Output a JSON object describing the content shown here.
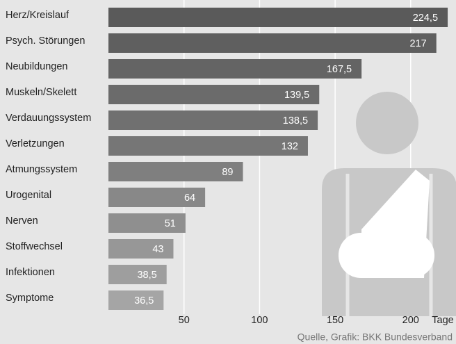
{
  "chart_data": {
    "type": "hbar",
    "categories": [
      "Herz/Kreislauf",
      "Psych. Störungen",
      "Neubildungen",
      "Muskeln/Skelett",
      "Verdauungssystem",
      "Verletzungen",
      "Atmungssystem",
      "Urogenital",
      "Nerven",
      "Stoffwechsel",
      "Infektionen",
      "Symptome"
    ],
    "values": [
      224.5,
      217,
      167.5,
      139.5,
      138.5,
      132,
      89,
      64,
      51,
      43,
      38.5,
      36.5
    ],
    "value_labels": [
      "224,5",
      "217",
      "167,5",
      "139,5",
      "138,5",
      "132",
      "89",
      "64",
      "51",
      "43",
      "38,5",
      "36,5"
    ],
    "colors": [
      "#5a5a5a",
      "#5f5f5f",
      "#646464",
      "#6b6b6b",
      "#707070",
      "#767676",
      "#7f7f7f",
      "#888888",
      "#8f8f8f",
      "#979797",
      "#9e9e9e",
      "#a5a5a5"
    ],
    "xlim": [
      0,
      230
    ],
    "xticks": [
      50,
      100,
      150,
      200
    ],
    "grid": true,
    "x_label": "Tage",
    "source": "Quelle, Grafik: BKK Bundesverband"
  }
}
